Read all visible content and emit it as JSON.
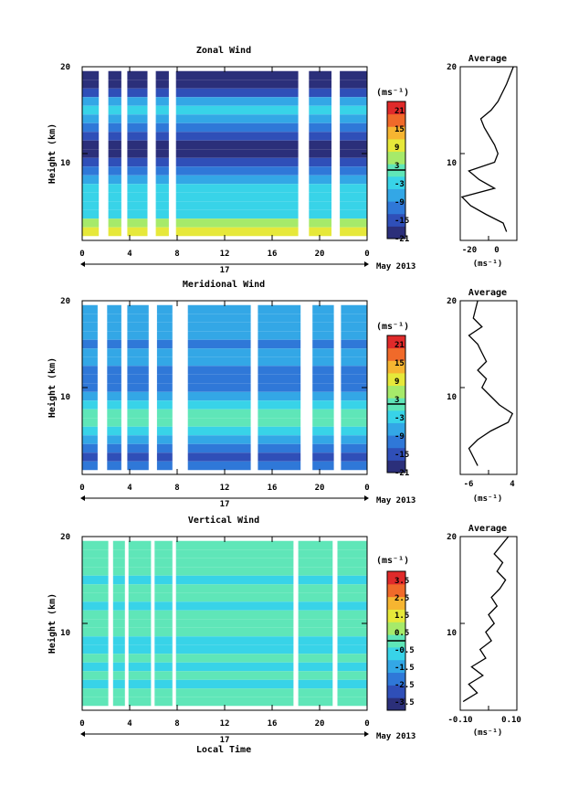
{
  "panels": [
    {
      "title": "Zonal Wind",
      "ylabel": "Height (km)",
      "yticks": [
        "20",
        "10"
      ],
      "xticks": [
        "0",
        "4",
        "8",
        "12",
        "16",
        "20",
        "0"
      ],
      "day_label": "17",
      "date_label": "May 2013",
      "unit": "(ms⁻¹)",
      "colorbar_ticks": [
        "21",
        "15",
        "9",
        "3",
        "-3",
        "-9",
        "-15",
        "-21"
      ],
      "avg_title": "Average",
      "avg_yticks": [
        "20",
        "10"
      ],
      "avg_xticks": [
        "-20",
        "0"
      ],
      "avg_xlabel": "(ms⁻¹)"
    },
    {
      "title": "Meridional Wind",
      "ylabel": "Height (km)",
      "yticks": [
        "20",
        "10"
      ],
      "xticks": [
        "0",
        "4",
        "8",
        "12",
        "16",
        "20",
        "0"
      ],
      "day_label": "17",
      "date_label": "May 2013",
      "unit": "(ms⁻¹)",
      "colorbar_ticks": [
        "21",
        "15",
        "9",
        "3",
        "-3",
        "-9",
        "-15",
        "-21"
      ],
      "avg_title": "Average",
      "avg_yticks": [
        "20",
        "10"
      ],
      "avg_xticks": [
        "-6",
        "4"
      ],
      "avg_xlabel": "(ms⁻¹)"
    },
    {
      "title": "Vertical Wind",
      "ylabel": "Height (km)",
      "yticks": [
        "20",
        "10"
      ],
      "xticks": [
        "0",
        "4",
        "8",
        "12",
        "16",
        "20",
        "0"
      ],
      "day_label": "17",
      "date_label": "May 2013",
      "unit": "(ms⁻¹)",
      "colorbar_ticks": [
        "3.5",
        "2.5",
        "1.5",
        "0.5",
        "-0.5",
        "-1.5",
        "-2.5",
        "-3.5"
      ],
      "avg_title": "Average",
      "avg_yticks": [
        "20",
        "10"
      ],
      "avg_xticks": [
        "-0.10",
        "0.10"
      ],
      "avg_xlabel": "(ms⁻¹)"
    }
  ],
  "xlabel": "Local Time",
  "colormap": [
    "#2b2f7a",
    "#2f4fb8",
    "#2f78d8",
    "#33a7e6",
    "#38d3e8",
    "#5fe6b8",
    "#a6ea6a",
    "#e6e83a",
    "#f6b531",
    "#f06a2a",
    "#e02a2a"
  ],
  "chart_data": [
    {
      "type": "heatmap",
      "title": "Zonal Wind",
      "ylabel": "Height (km)",
      "xlim": [
        0,
        24
      ],
      "ylim": [
        0,
        20
      ],
      "colorbar": [
        -21,
        21
      ],
      "gaps_local_time": [
        [
          1.4,
          2.2
        ],
        [
          3.3,
          3.8
        ],
        [
          5.5,
          6.2
        ],
        [
          7.3,
          7.9
        ],
        [
          18.2,
          19.1
        ],
        [
          21.0,
          21.7
        ]
      ],
      "rows": [
        {
          "h": 19,
          "v": -20
        },
        {
          "h": 18,
          "v": -21
        },
        {
          "h": 17,
          "v": -16
        },
        {
          "h": 16,
          "v": -8
        },
        {
          "h": 15,
          "v": -3
        },
        {
          "h": 14,
          "v": -6
        },
        {
          "h": 13,
          "v": -10
        },
        {
          "h": 12,
          "v": -17
        },
        {
          "h": 11,
          "v": -21
        },
        {
          "h": 10,
          "v": -21
        },
        {
          "h": 9,
          "v": -16
        },
        {
          "h": 8,
          "v": -12
        },
        {
          "h": 7,
          "v": -8
        },
        {
          "h": 6,
          "v": -5
        },
        {
          "h": 5,
          "v": -3
        },
        {
          "h": 4,
          "v": -5
        },
        {
          "h": 3,
          "v": -2
        },
        {
          "h": 2,
          "v": 3
        },
        {
          "h": 1,
          "v": 7
        }
      ],
      "average_profile": {
        "x": [
          2,
          0,
          -10,
          -19,
          -24,
          -5,
          -14,
          -20,
          -5,
          -3,
          -5,
          -8,
          -11,
          -13,
          -7,
          -3,
          2,
          6
        ],
        "height": [
          1,
          2,
          3,
          4,
          5,
          6,
          7,
          8,
          9,
          10,
          11,
          12,
          13,
          14,
          15,
          16,
          18,
          20
        ],
        "xlim": [
          -25,
          8
        ]
      }
    },
    {
      "type": "heatmap",
      "title": "Meridional Wind",
      "ylabel": "Height (km)",
      "xlim": [
        0,
        24
      ],
      "ylim": [
        0,
        20
      ],
      "colorbar": [
        -21,
        21
      ],
      "gaps_local_time": [
        [
          1.3,
          2.1
        ],
        [
          3.3,
          3.8
        ],
        [
          5.6,
          6.3
        ],
        [
          7.6,
          8.9
        ],
        [
          14.2,
          14.8
        ],
        [
          18.4,
          19.4
        ],
        [
          21.2,
          21.8
        ]
      ],
      "rows": [
        {
          "h": 19,
          "v": -9
        },
        {
          "h": 18,
          "v": -8
        },
        {
          "h": 17,
          "v": -7
        },
        {
          "h": 16,
          "v": -9
        },
        {
          "h": 15,
          "v": -10
        },
        {
          "h": 14,
          "v": -9
        },
        {
          "h": 13,
          "v": -8
        },
        {
          "h": 12,
          "v": -11
        },
        {
          "h": 11,
          "v": -13
        },
        {
          "h": 10,
          "v": -12
        },
        {
          "h": 9,
          "v": -8
        },
        {
          "h": 8,
          "v": -4
        },
        {
          "h": 7,
          "v": -1
        },
        {
          "h": 6,
          "v": 1
        },
        {
          "h": 5,
          "v": -5
        },
        {
          "h": 4,
          "v": -9
        },
        {
          "h": 3,
          "v": -12
        },
        {
          "h": 2,
          "v": -14
        },
        {
          "h": 1,
          "v": -12
        }
      ],
      "average_profile": {
        "x": [
          -4,
          -5,
          -6,
          -4,
          -1,
          3,
          4,
          1,
          -1,
          -3,
          -2,
          -4,
          -2,
          -3,
          -4,
          -6,
          -3,
          -5,
          -4
        ],
        "height": [
          1,
          2,
          3,
          4,
          5,
          6,
          7,
          8,
          9,
          10,
          11,
          12,
          13,
          14,
          15,
          16,
          17,
          18,
          20
        ],
        "xlim": [
          -8,
          5
        ]
      }
    },
    {
      "type": "heatmap",
      "title": "Vertical Wind",
      "ylabel": "Height (km)",
      "xlim": [
        0,
        24
      ],
      "ylim": [
        0,
        20
      ],
      "colorbar": [
        -3.5,
        3.5
      ],
      "gaps_local_time": [
        [
          2.2,
          2.6
        ],
        [
          3.6,
          3.9
        ],
        [
          5.8,
          6.1
        ],
        [
          7.6,
          7.9
        ],
        [
          17.8,
          18.2
        ],
        [
          21.1,
          21.5
        ]
      ],
      "rows": [
        {
          "h": 19,
          "v": -0.2
        },
        {
          "h": 18,
          "v": 0.0
        },
        {
          "h": 17,
          "v": -0.3
        },
        {
          "h": 16,
          "v": -0.1
        },
        {
          "h": 15,
          "v": -0.4
        },
        {
          "h": 14,
          "v": -0.2
        },
        {
          "h": 13,
          "v": -0.3
        },
        {
          "h": 12,
          "v": -0.5
        },
        {
          "h": 11,
          "v": -0.2
        },
        {
          "h": 10,
          "v": -0.1
        },
        {
          "h": 9,
          "v": -0.3
        },
        {
          "h": 8,
          "v": -0.4
        },
        {
          "h": 7,
          "v": -0.6
        },
        {
          "h": 6,
          "v": -0.2
        },
        {
          "h": 5,
          "v": -0.5
        },
        {
          "h": 4,
          "v": -0.3
        },
        {
          "h": 3,
          "v": -0.4
        },
        {
          "h": 2,
          "v": -0.1
        },
        {
          "h": 1,
          "v": 0.2
        }
      ],
      "average_profile": {
        "x": [
          -0.09,
          -0.04,
          -0.07,
          -0.02,
          -0.06,
          -0.01,
          -0.03,
          0.01,
          -0.01,
          0.02,
          0.0,
          0.03,
          0.01,
          0.04,
          0.06,
          0.03,
          0.05,
          0.02,
          0.07
        ],
        "height": [
          1,
          2,
          3,
          4,
          5,
          6,
          7,
          8,
          9,
          10,
          11,
          12,
          13,
          14,
          15,
          16,
          17,
          18,
          20
        ],
        "xlim": [
          -0.1,
          0.1
        ]
      }
    }
  ]
}
